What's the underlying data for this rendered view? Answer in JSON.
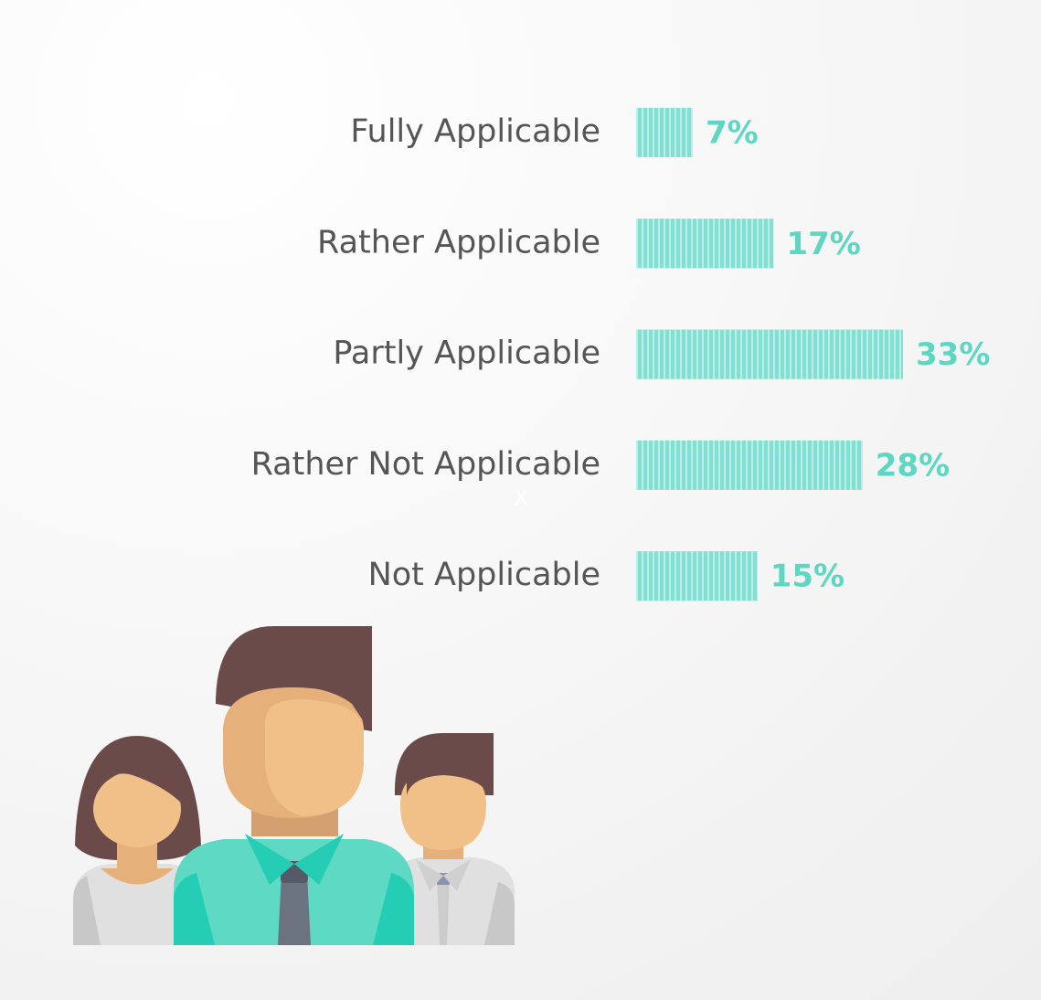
{
  "chart_data": {
    "type": "bar",
    "orientation": "horizontal",
    "categories": [
      "Fully Applicable",
      "Rather Applicable",
      "Partly Applicable",
      "Rather Not Applicable",
      "Not Applicable"
    ],
    "values": [
      7,
      17,
      33,
      28,
      15
    ],
    "value_labels": [
      "7%",
      "17%",
      "33%",
      "28%",
      "15%"
    ],
    "color": "#3fd0bc",
    "annotations": [
      "X"
    ]
  }
}
